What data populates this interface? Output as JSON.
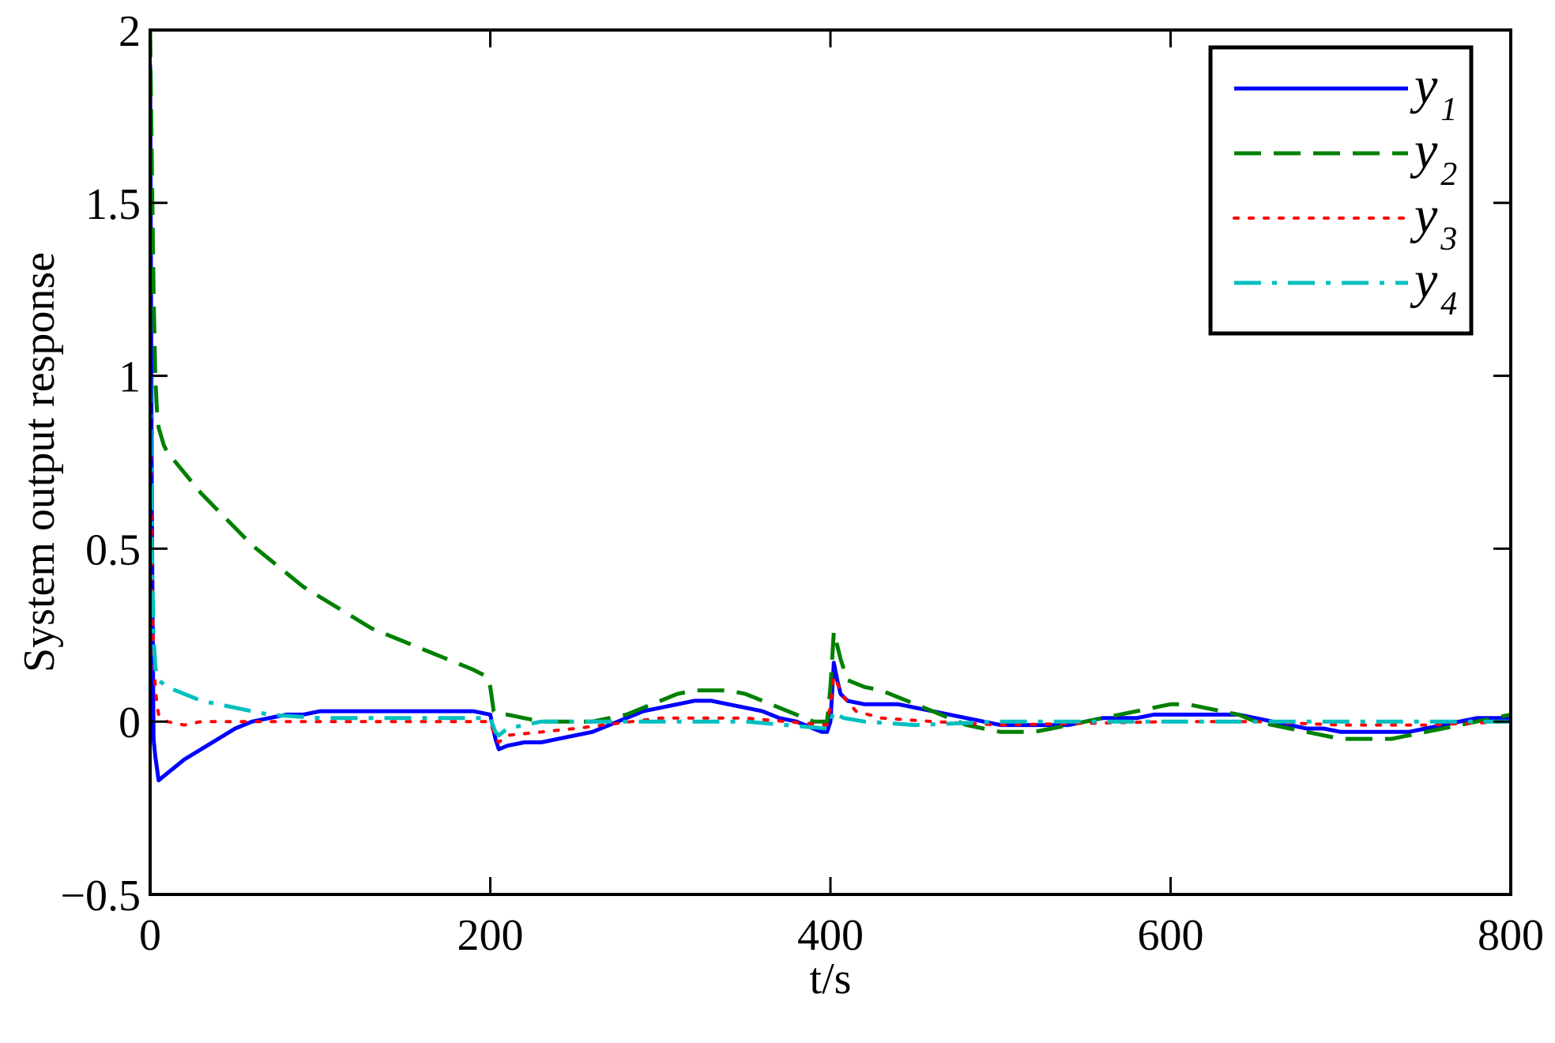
{
  "chart_data": {
    "type": "line",
    "title": "",
    "xlabel": "t/s",
    "ylabel": "System output response",
    "xlim": [
      0,
      800
    ],
    "ylim": [
      -0.5,
      2
    ],
    "xticks": [
      0,
      200,
      400,
      600,
      800
    ],
    "xtick_labels": [
      "0",
      "200",
      "400",
      "600",
      "800"
    ],
    "yticks": [
      -0.5,
      0,
      0.5,
      1,
      1.5,
      2
    ],
    "ytick_labels": [
      "−0.5",
      "0",
      "0.5",
      "1",
      "1.5",
      "2"
    ],
    "grid": false,
    "legend_position": "top-right",
    "series": [
      {
        "name": "y",
        "subscript": "1",
        "color": "#0000ff",
        "style": "solid",
        "x": [
          0,
          1,
          2,
          3,
          5,
          10,
          20,
          30,
          40,
          50,
          60,
          70,
          80,
          90,
          100,
          110,
          120,
          130,
          140,
          150,
          160,
          170,
          180,
          190,
          200,
          203,
          205,
          210,
          220,
          230,
          240,
          250,
          260,
          270,
          280,
          290,
          300,
          310,
          320,
          330,
          340,
          350,
          360,
          370,
          380,
          390,
          395,
          398,
          400,
          402,
          404,
          406,
          410,
          420,
          430,
          440,
          450,
          460,
          470,
          480,
          490,
          500,
          510,
          520,
          530,
          540,
          550,
          560,
          570,
          580,
          590,
          600,
          610,
          620,
          630,
          640,
          650,
          660,
          670,
          680,
          690,
          700,
          710,
          720,
          730,
          740,
          750,
          760,
          770,
          780,
          790,
          800
        ],
        "y": [
          1.9,
          0.6,
          -0.05,
          -0.1,
          -0.17,
          -0.15,
          -0.11,
          -0.08,
          -0.05,
          -0.02,
          0.0,
          0.01,
          0.02,
          0.02,
          0.03,
          0.03,
          0.03,
          0.03,
          0.03,
          0.03,
          0.03,
          0.03,
          0.03,
          0.03,
          0.02,
          -0.05,
          -0.08,
          -0.07,
          -0.06,
          -0.06,
          -0.05,
          -0.04,
          -0.03,
          -0.01,
          0.01,
          0.03,
          0.04,
          0.05,
          0.06,
          0.06,
          0.05,
          0.04,
          0.03,
          0.01,
          0.0,
          -0.02,
          -0.03,
          -0.03,
          0.0,
          0.17,
          0.12,
          0.08,
          0.06,
          0.05,
          0.05,
          0.05,
          0.04,
          0.03,
          0.02,
          0.01,
          0.0,
          -0.01,
          -0.01,
          -0.01,
          -0.01,
          -0.01,
          0.0,
          0.01,
          0.01,
          0.01,
          0.02,
          0.02,
          0.02,
          0.02,
          0.02,
          0.02,
          0.01,
          0.0,
          -0.01,
          -0.02,
          -0.02,
          -0.03,
          -0.03,
          -0.03,
          -0.03,
          -0.03,
          -0.02,
          -0.01,
          0.0,
          0.01,
          0.01,
          0.01
        ]
      },
      {
        "name": "y",
        "subscript": "2",
        "color": "#008000",
        "style": "dashed",
        "x": [
          0,
          1,
          2,
          3,
          4,
          5,
          8,
          10,
          20,
          30,
          40,
          50,
          60,
          70,
          80,
          90,
          100,
          110,
          120,
          130,
          140,
          150,
          160,
          170,
          180,
          190,
          198,
          200,
          202,
          205,
          210,
          220,
          230,
          240,
          250,
          260,
          270,
          280,
          290,
          300,
          310,
          320,
          330,
          340,
          350,
          360,
          370,
          380,
          390,
          398,
          400,
          402,
          404,
          406,
          410,
          420,
          430,
          440,
          450,
          460,
          470,
          480,
          490,
          500,
          510,
          520,
          530,
          540,
          550,
          560,
          570,
          580,
          590,
          600,
          610,
          620,
          630,
          640,
          650,
          660,
          670,
          680,
          690,
          700,
          710,
          720,
          730,
          740,
          750,
          760,
          770,
          780,
          790,
          800
        ],
        "y": [
          2.0,
          1.6,
          1.25,
          1.0,
          0.9,
          0.85,
          0.8,
          0.78,
          0.72,
          0.66,
          0.61,
          0.56,
          0.51,
          0.47,
          0.43,
          0.39,
          0.36,
          0.33,
          0.3,
          0.27,
          0.25,
          0.23,
          0.21,
          0.19,
          0.17,
          0.15,
          0.13,
          0.1,
          0.03,
          0.02,
          0.02,
          0.01,
          0.0,
          0.0,
          0.0,
          0.0,
          0.01,
          0.02,
          0.04,
          0.06,
          0.08,
          0.09,
          0.09,
          0.09,
          0.08,
          0.06,
          0.04,
          0.02,
          0.0,
          0.0,
          0.1,
          0.26,
          0.22,
          0.18,
          0.12,
          0.1,
          0.09,
          0.07,
          0.05,
          0.03,
          0.01,
          -0.01,
          -0.02,
          -0.03,
          -0.03,
          -0.03,
          -0.02,
          -0.01,
          0.0,
          0.01,
          0.02,
          0.03,
          0.04,
          0.05,
          0.05,
          0.04,
          0.03,
          0.02,
          0.0,
          -0.01,
          -0.02,
          -0.03,
          -0.04,
          -0.05,
          -0.05,
          -0.05,
          -0.05,
          -0.04,
          -0.03,
          -0.02,
          -0.01,
          0.0,
          0.01,
          0.02
        ]
      },
      {
        "name": "y",
        "subscript": "3",
        "color": "#ff0000",
        "style": "dotted",
        "x": [
          0,
          1,
          2,
          3,
          4,
          5,
          10,
          20,
          30,
          50,
          100,
          150,
          200,
          203,
          205,
          210,
          250,
          300,
          350,
          398,
          400,
          402,
          404,
          408,
          415,
          430,
          460,
          500,
          600,
          650,
          700,
          750,
          800
        ],
        "y": [
          0.9,
          0.4,
          0.2,
          0.1,
          0.05,
          0.02,
          0.0,
          -0.01,
          0.0,
          0.0,
          0.0,
          0.0,
          0.0,
          -0.05,
          -0.06,
          -0.04,
          -0.02,
          0.01,
          0.01,
          -0.01,
          0.05,
          0.13,
          0.11,
          0.07,
          0.03,
          0.01,
          0.0,
          -0.01,
          0.0,
          0.0,
          -0.01,
          -0.01,
          0.0
        ]
      },
      {
        "name": "y",
        "subscript": "4",
        "color": "#00bfbf",
        "style": "dashdot",
        "x": [
          0,
          1,
          2,
          3,
          4,
          5,
          10,
          20,
          30,
          50,
          70,
          100,
          150,
          200,
          203,
          205,
          210,
          230,
          300,
          350,
          398,
          400,
          402,
          404,
          408,
          420,
          450,
          500,
          600,
          650,
          700,
          750,
          800
        ],
        "y": [
          1.0,
          0.5,
          0.25,
          0.16,
          0.13,
          0.12,
          0.1,
          0.08,
          0.06,
          0.04,
          0.02,
          0.01,
          0.01,
          0.01,
          -0.03,
          -0.04,
          -0.02,
          0.0,
          0.0,
          0.0,
          -0.02,
          0.0,
          0.03,
          0.02,
          0.01,
          0.0,
          -0.01,
          0.0,
          0.0,
          0.0,
          0.0,
          0.0,
          0.0
        ]
      }
    ]
  }
}
